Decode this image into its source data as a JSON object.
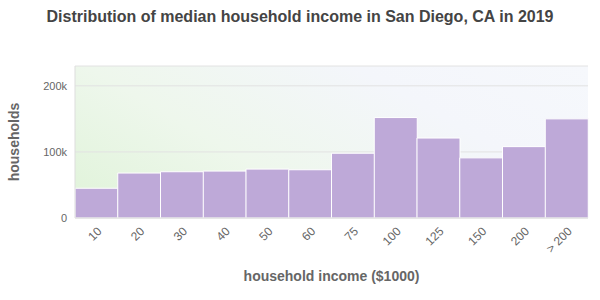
{
  "chart_data": {
    "type": "bar",
    "title": "Distribution of median household income in San Diego, CA in 2019",
    "x_label": "household income ($1000)",
    "y_label": "households",
    "categories": [
      "10",
      "20",
      "30",
      "40",
      "50",
      "60",
      "75",
      "100",
      "125",
      "150",
      "200",
      "> 200"
    ],
    "values": [
      45000,
      68000,
      70000,
      71000,
      74000,
      73000,
      98000,
      152000,
      121000,
      91000,
      108000,
      150000
    ],
    "color": "#bea9d8",
    "ylim": [
      0,
      230000
    ],
    "yticks": [
      0,
      {
        "value": 100000,
        "label": "100k"
      },
      {
        "value": 200000,
        "label": "200k"
      }
    ],
    "grid": true
  }
}
